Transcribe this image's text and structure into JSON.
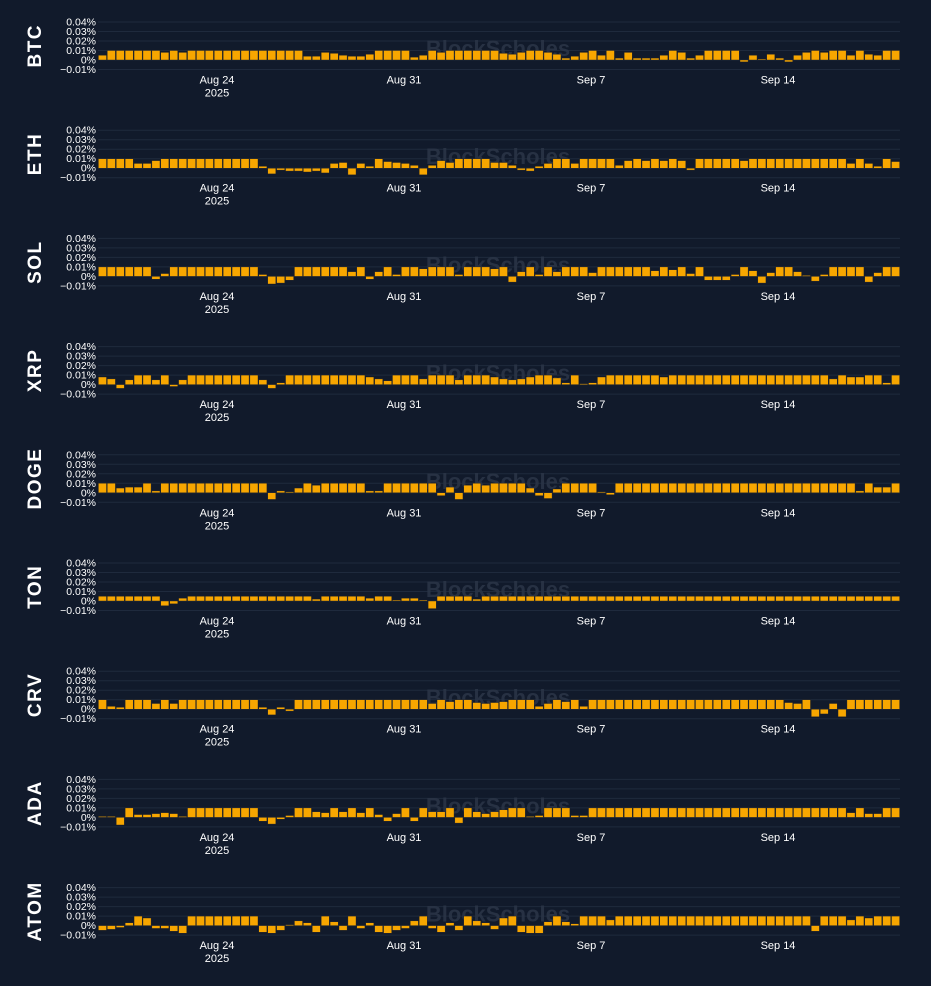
{
  "watermark": "BlockScholes",
  "colors": {
    "background": "#111a2b",
    "bar": "#f7a600",
    "bar_edge": "#1a1f2b",
    "grid": "#1f2a3d",
    "text": "#ffffff",
    "watermark": "#2a3446"
  },
  "chart_data": [
    {
      "type": "bar",
      "title": "BTC",
      "ylim": [
        -0.0001,
        0.0004
      ],
      "yticks": [
        -0.0001,
        0,
        0.0001,
        0.0002,
        0.0003,
        0.0004
      ],
      "ytick_labels": [
        "−0.01%",
        "0%",
        "0.01%",
        "0.02%",
        "0.03%",
        "0.04%"
      ],
      "xticks": [
        {
          "label": "Aug 24",
          "sublabel": "2025"
        },
        {
          "label": "Aug 31",
          "sublabel": ""
        },
        {
          "label": "Sep 7",
          "sublabel": ""
        },
        {
          "label": "Sep 14",
          "sublabel": ""
        }
      ],
      "values": [
        5e-05,
        0.0001,
        0.0001,
        0.0001,
        0.0001,
        0.0001,
        0.0001,
        8e-05,
        0.0001,
        8e-05,
        0.0001,
        0.0001,
        0.0001,
        0.0001,
        0.0001,
        0.0001,
        0.0001,
        0.0001,
        0.0001,
        0.0001,
        0.0001,
        0.0001,
        0.0001,
        4e-05,
        4e-05,
        8e-05,
        7e-05,
        5e-05,
        4e-05,
        4e-05,
        6e-05,
        0.0001,
        0.0001,
        0.0001,
        0.0001,
        3e-05,
        5e-05,
        0.0001,
        8e-05,
        0.0001,
        0.0001,
        0.0001,
        0.0001,
        0.0001,
        0.0001,
        7e-05,
        6e-05,
        8e-05,
        0.0001,
        0.0001,
        8e-05,
        6e-05,
        2e-05,
        4e-05,
        8e-05,
        0.0001,
        5e-05,
        0.0001,
        2e-05,
        8e-05,
        2e-05,
        2e-05,
        2e-05,
        5e-05,
        0.0001,
        8e-05,
        2e-05,
        5e-05,
        0.0001,
        0.0001,
        0.0001,
        0.0001,
        -2e-05,
        5e-05,
        1e-05,
        6e-05,
        2e-05,
        -2e-05,
        5e-05,
        8e-05,
        0.0001,
        8e-05,
        0.0001,
        0.0001,
        5e-05,
        0.0001,
        6e-05,
        5e-05,
        0.0001,
        0.0001
      ]
    },
    {
      "type": "bar",
      "title": "ETH",
      "ylim": [
        -0.0001,
        0.0004
      ],
      "yticks": [
        -0.0001,
        0,
        0.0001,
        0.0002,
        0.0003,
        0.0004
      ],
      "ytick_labels": [
        "−0.01%",
        "0%",
        "0.01%",
        "0.02%",
        "0.03%",
        "0.04%"
      ],
      "xticks": [
        {
          "label": "Aug 24",
          "sublabel": "2025"
        },
        {
          "label": "Aug 31",
          "sublabel": ""
        },
        {
          "label": "Sep 7",
          "sublabel": ""
        },
        {
          "label": "Sep 14",
          "sublabel": ""
        }
      ],
      "values": [
        0.0001,
        0.0001,
        0.0001,
        0.0001,
        5e-05,
        5e-05,
        8e-05,
        0.0001,
        0.0001,
        0.0001,
        0.0001,
        0.0001,
        0.0001,
        0.0001,
        0.0001,
        0.0001,
        0.0001,
        0.0001,
        2e-05,
        -6e-05,
        -2e-05,
        -3e-05,
        -3e-05,
        -4e-05,
        -3e-05,
        -5e-05,
        5e-05,
        6e-05,
        -7e-05,
        5e-05,
        2e-05,
        0.0001,
        7e-05,
        6e-05,
        5e-05,
        3e-05,
        -7e-05,
        3e-05,
        8e-05,
        6e-05,
        0.0001,
        0.0001,
        0.0001,
        0.0001,
        6e-05,
        6e-05,
        3e-05,
        -2e-05,
        -3e-05,
        2e-05,
        5e-05,
        0.0001,
        0.0001,
        5e-05,
        0.0001,
        0.0001,
        0.0001,
        0.0001,
        3e-05,
        8e-05,
        0.0001,
        8e-05,
        0.0001,
        8e-05,
        0.0001,
        8e-05,
        -2e-05,
        0.0001,
        0.0001,
        0.0001,
        0.0001,
        0.0001,
        8e-05,
        0.0001,
        0.0001,
        0.0001,
        0.0001,
        0.0001,
        0.0001,
        0.0001,
        0.0001,
        0.0001,
        0.0001,
        0.0001,
        5e-05,
        0.0001,
        5e-05,
        2e-05,
        0.0001,
        7e-05
      ]
    },
    {
      "type": "bar",
      "title": "SOL",
      "ylim": [
        -0.0001,
        0.0004
      ],
      "yticks": [
        -0.0001,
        0,
        0.0001,
        0.0002,
        0.0003,
        0.0004
      ],
      "ytick_labels": [
        "−0.01%",
        "0%",
        "0.01%",
        "0.02%",
        "0.03%",
        "0.04%"
      ],
      "xticks": [
        {
          "label": "Aug 24",
          "sublabel": "2025"
        },
        {
          "label": "Aug 31",
          "sublabel": ""
        },
        {
          "label": "Sep 7",
          "sublabel": ""
        },
        {
          "label": "Sep 14",
          "sublabel": ""
        }
      ],
      "values": [
        0.0001,
        0.0001,
        0.0001,
        0.0001,
        0.0001,
        0.0001,
        -3e-05,
        3e-05,
        0.0001,
        0.0001,
        0.0001,
        0.0001,
        0.0001,
        0.0001,
        0.0001,
        0.0001,
        0.0001,
        0.0001,
        2e-05,
        -8e-05,
        -7e-05,
        -4e-05,
        0.0001,
        0.0001,
        0.0001,
        0.0001,
        0.0001,
        0.0001,
        5e-05,
        0.0001,
        -3e-05,
        5e-05,
        0.0001,
        2e-05,
        0.0001,
        0.0001,
        8e-05,
        0.0001,
        0.0001,
        0.0001,
        2e-05,
        0.0001,
        0.0001,
        0.0001,
        8e-05,
        0.0001,
        -6e-05,
        5e-05,
        0.0001,
        2e-05,
        0.0001,
        5e-05,
        0.0001,
        0.0001,
        0.0001,
        4e-05,
        0.0001,
        0.0001,
        0.0001,
        0.0001,
        0.0001,
        0.0001,
        6e-05,
        0.0001,
        7e-05,
        0.0001,
        3e-05,
        0.0001,
        -4e-05,
        -4e-05,
        -4e-05,
        2e-05,
        0.0001,
        6e-05,
        -7e-05,
        4e-05,
        0.0001,
        0.0001,
        5e-05,
        1e-05,
        -5e-05,
        2e-05,
        0.0001,
        0.0001,
        0.0001,
        0.0001,
        -6e-05,
        4e-05,
        0.0001,
        0.0001
      ]
    },
    {
      "type": "bar",
      "title": "XRP",
      "ylim": [
        -0.0001,
        0.0004
      ],
      "yticks": [
        -0.0001,
        0,
        0.0001,
        0.0002,
        0.0003,
        0.0004
      ],
      "ytick_labels": [
        "−0.01%",
        "0%",
        "0.01%",
        "0.02%",
        "0.03%",
        "0.04%"
      ],
      "xticks": [
        {
          "label": "Aug 24",
          "sublabel": "2025"
        },
        {
          "label": "Aug 31",
          "sublabel": ""
        },
        {
          "label": "Sep 7",
          "sublabel": ""
        },
        {
          "label": "Sep 14",
          "sublabel": ""
        }
      ],
      "values": [
        8e-05,
        6e-05,
        -4e-05,
        5e-05,
        0.0001,
        0.0001,
        5e-05,
        0.0001,
        -2e-05,
        5e-05,
        0.0001,
        0.0001,
        0.0001,
        0.0001,
        0.0001,
        0.0001,
        0.0001,
        0.0001,
        5e-05,
        -4e-05,
        2e-05,
        0.0001,
        0.0001,
        0.0001,
        0.0001,
        0.0001,
        0.0001,
        0.0001,
        0.0001,
        0.0001,
        8e-05,
        6e-05,
        4e-05,
        0.0001,
        0.0001,
        0.0001,
        6e-05,
        0.0001,
        0.0001,
        0.0001,
        5e-05,
        0.0001,
        0.0001,
        0.0001,
        8e-05,
        6e-05,
        5e-05,
        6e-05,
        8e-05,
        0.0001,
        0.0001,
        7e-05,
        2e-05,
        0.0001,
        1e-05,
        2e-05,
        8e-05,
        0.0001,
        0.0001,
        0.0001,
        0.0001,
        0.0001,
        0.0001,
        8e-05,
        0.0001,
        0.0001,
        0.0001,
        0.0001,
        0.0001,
        0.0001,
        0.0001,
        0.0001,
        0.0001,
        0.0001,
        0.0001,
        0.0001,
        0.0001,
        0.0001,
        0.0001,
        0.0001,
        0.0001,
        0.0001,
        6e-05,
        0.0001,
        8e-05,
        8e-05,
        0.0001,
        0.0001,
        2e-05,
        0.0001
      ]
    },
    {
      "type": "bar",
      "title": "DOGE",
      "ylim": [
        -0.0001,
        0.0004
      ],
      "yticks": [
        -0.0001,
        0,
        0.0001,
        0.0002,
        0.0003,
        0.0004
      ],
      "ytick_labels": [
        "−0.01%",
        "0%",
        "0.01%",
        "0.02%",
        "0.03%",
        "0.04%"
      ],
      "xticks": [
        {
          "label": "Aug 24",
          "sublabel": "2025"
        },
        {
          "label": "Aug 31",
          "sublabel": ""
        },
        {
          "label": "Sep 7",
          "sublabel": ""
        },
        {
          "label": "Sep 14",
          "sublabel": ""
        }
      ],
      "values": [
        0.0001,
        0.0001,
        5e-05,
        6e-05,
        6e-05,
        0.0001,
        2e-05,
        0.0001,
        0.0001,
        0.0001,
        0.0001,
        0.0001,
        0.0001,
        0.0001,
        0.0001,
        0.0001,
        0.0001,
        0.0001,
        0.0001,
        -7e-05,
        2e-05,
        1e-05,
        5e-05,
        0.0001,
        8e-05,
        0.0001,
        0.0001,
        0.0001,
        0.0001,
        0.0001,
        2e-05,
        2e-05,
        0.0001,
        0.0001,
        0.0001,
        0.0001,
        0.0001,
        0.0001,
        -3e-05,
        6e-05,
        -7e-05,
        8e-05,
        0.0001,
        8e-05,
        0.0001,
        0.0001,
        0.0001,
        0.0001,
        5e-05,
        -3e-05,
        -6e-05,
        4e-05,
        0.0001,
        0.0001,
        0.0001,
        0.0001,
        1e-05,
        -2e-05,
        0.0001,
        0.0001,
        0.0001,
        0.0001,
        0.0001,
        0.0001,
        0.0001,
        0.0001,
        0.0001,
        0.0001,
        0.0001,
        0.0001,
        0.0001,
        0.0001,
        0.0001,
        0.0001,
        0.0001,
        0.0001,
        0.0001,
        0.0001,
        0.0001,
        0.0001,
        0.0001,
        0.0001,
        0.0001,
        0.0001,
        0.0001,
        2e-05,
        0.0001,
        6e-05,
        6e-05,
        0.0001
      ]
    },
    {
      "type": "bar",
      "title": "TON",
      "ylim": [
        -0.0001,
        0.0004
      ],
      "yticks": [
        -0.0001,
        0,
        0.0001,
        0.0002,
        0.0003,
        0.0004
      ],
      "ytick_labels": [
        "−0.01%",
        "0%",
        "0.01%",
        "0.02%",
        "0.03%",
        "0.04%"
      ],
      "xticks": [
        {
          "label": "Aug 24",
          "sublabel": "2025"
        },
        {
          "label": "Aug 31",
          "sublabel": ""
        },
        {
          "label": "Sep 7",
          "sublabel": ""
        },
        {
          "label": "Sep 14",
          "sublabel": ""
        }
      ],
      "values": [
        5e-05,
        5e-05,
        5e-05,
        5e-05,
        5e-05,
        5e-05,
        5e-05,
        -5e-05,
        -3e-05,
        3e-05,
        5e-05,
        5e-05,
        5e-05,
        5e-05,
        5e-05,
        5e-05,
        5e-05,
        5e-05,
        5e-05,
        5e-05,
        5e-05,
        5e-05,
        5e-05,
        5e-05,
        2e-05,
        5e-05,
        5e-05,
        5e-05,
        5e-05,
        5e-05,
        3e-05,
        5e-05,
        5e-05,
        1e-05,
        3e-05,
        3e-05,
        1e-05,
        -8e-05,
        5e-05,
        5e-05,
        5e-05,
        5e-05,
        2e-05,
        5e-05,
        5e-05,
        5e-05,
        5e-05,
        5e-05,
        5e-05,
        5e-05,
        5e-05,
        5e-05,
        5e-05,
        5e-05,
        5e-05,
        5e-05,
        5e-05,
        5e-05,
        5e-05,
        5e-05,
        5e-05,
        5e-05,
        5e-05,
        5e-05,
        5e-05,
        5e-05,
        5e-05,
        5e-05,
        5e-05,
        5e-05,
        5e-05,
        5e-05,
        5e-05,
        5e-05,
        5e-05,
        5e-05,
        5e-05,
        5e-05,
        5e-05,
        5e-05,
        5e-05,
        5e-05,
        5e-05,
        5e-05,
        5e-05,
        5e-05,
        5e-05,
        5e-05,
        5e-05,
        5e-05
      ]
    },
    {
      "type": "bar",
      "title": "CRV",
      "ylim": [
        -0.0001,
        0.0004
      ],
      "yticks": [
        -0.0001,
        0,
        0.0001,
        0.0002,
        0.0003,
        0.0004
      ],
      "ytick_labels": [
        "−0.01%",
        "0%",
        "0.01%",
        "0.02%",
        "0.03%",
        "0.04%"
      ],
      "xticks": [
        {
          "label": "Aug 24",
          "sublabel": "2025"
        },
        {
          "label": "Aug 31",
          "sublabel": ""
        },
        {
          "label": "Sep 7",
          "sublabel": ""
        },
        {
          "label": "Sep 14",
          "sublabel": ""
        }
      ],
      "values": [
        0.0001,
        3e-05,
        2e-05,
        0.0001,
        0.0001,
        0.0001,
        6e-05,
        0.0001,
        6e-05,
        0.0001,
        0.0001,
        0.0001,
        0.0001,
        0.0001,
        0.0001,
        0.0001,
        0.0001,
        0.0001,
        2e-05,
        -6e-05,
        2e-05,
        -2e-05,
        0.0001,
        0.0001,
        0.0001,
        0.0001,
        0.0001,
        0.0001,
        0.0001,
        0.0001,
        0.0001,
        0.0001,
        0.0001,
        0.0001,
        0.0001,
        0.0001,
        0.0001,
        6e-05,
        0.0001,
        8e-05,
        0.0001,
        0.0001,
        7e-05,
        6e-05,
        7e-05,
        8e-05,
        0.0001,
        0.0001,
        0.0001,
        3e-05,
        6e-05,
        0.0001,
        8e-05,
        0.0001,
        3e-05,
        0.0001,
        0.0001,
        0.0001,
        0.0001,
        0.0001,
        0.0001,
        0.0001,
        0.0001,
        0.0001,
        0.0001,
        0.0001,
        0.0001,
        0.0001,
        0.0001,
        0.0001,
        0.0001,
        0.0001,
        0.0001,
        0.0001,
        0.0001,
        0.0001,
        0.0001,
        7e-05,
        6e-05,
        0.0001,
        -8e-05,
        -5e-05,
        6e-05,
        -8e-05,
        0.0001,
        0.0001,
        0.0001,
        0.0001,
        0.0001,
        0.0001
      ]
    },
    {
      "type": "bar",
      "title": "ADA",
      "ylim": [
        -0.0001,
        0.0004
      ],
      "yticks": [
        -0.0001,
        0,
        0.0001,
        0.0002,
        0.0003,
        0.0004
      ],
      "ytick_labels": [
        "−0.01%",
        "0%",
        "0.01%",
        "0.02%",
        "0.03%",
        "0.04%"
      ],
      "xticks": [
        {
          "label": "Aug 24",
          "sublabel": "2025"
        },
        {
          "label": "Aug 31",
          "sublabel": ""
        },
        {
          "label": "Sep 7",
          "sublabel": ""
        },
        {
          "label": "Sep 14",
          "sublabel": ""
        }
      ],
      "values": [
        1e-05,
        1e-05,
        -8e-05,
        0.0001,
        3e-05,
        3e-05,
        4e-05,
        5e-05,
        4e-05,
        1e-05,
        0.0001,
        0.0001,
        0.0001,
        0.0001,
        0.0001,
        0.0001,
        0.0001,
        0.0001,
        -4e-05,
        -7e-05,
        -2e-05,
        2e-05,
        0.0001,
        0.0001,
        6e-05,
        5e-05,
        0.0001,
        6e-05,
        0.0001,
        5e-05,
        0.0001,
        3e-05,
        -4e-05,
        4e-05,
        0.0001,
        -4e-05,
        0.0001,
        6e-05,
        6e-05,
        0.0001,
        -6e-05,
        0.0001,
        6e-05,
        4e-05,
        6e-05,
        8e-05,
        0.0001,
        0.0001,
        1e-05,
        2e-05,
        0.0001,
        0.0001,
        0.0001,
        2e-05,
        2e-05,
        0.0001,
        0.0001,
        0.0001,
        0.0001,
        0.0001,
        0.0001,
        0.0001,
        0.0001,
        0.0001,
        0.0001,
        0.0001,
        0.0001,
        0.0001,
        0.0001,
        0.0001,
        0.0001,
        0.0001,
        0.0001,
        0.0001,
        0.0001,
        0.0001,
        0.0001,
        0.0001,
        0.0001,
        0.0001,
        0.0001,
        0.0001,
        0.0001,
        0.0001,
        5e-05,
        0.0001,
        4e-05,
        4e-05,
        0.0001,
        0.0001
      ]
    },
    {
      "type": "bar",
      "title": "ATOM",
      "ylim": [
        -0.0001,
        0.0004
      ],
      "yticks": [
        -0.0001,
        0,
        0.0001,
        0.0002,
        0.0003,
        0.0004
      ],
      "ytick_labels": [
        "−0.01%",
        "0%",
        "0.01%",
        "0.02%",
        "0.03%",
        "0.04%"
      ],
      "xticks": [
        {
          "label": "Aug 24",
          "sublabel": "2025"
        },
        {
          "label": "Aug 31",
          "sublabel": ""
        },
        {
          "label": "Sep 7",
          "sublabel": ""
        },
        {
          "label": "Sep 14",
          "sublabel": ""
        }
      ],
      "values": [
        -5e-05,
        -4e-05,
        -2e-05,
        3e-05,
        0.0001,
        8e-05,
        -3e-05,
        -3e-05,
        -6e-05,
        -8e-05,
        0.0001,
        0.0001,
        0.0001,
        0.0001,
        0.0001,
        0.0001,
        0.0001,
        0.0001,
        -7e-05,
        -8e-05,
        -5e-05,
        1e-05,
        5e-05,
        3e-05,
        -7e-05,
        0.0001,
        4e-05,
        -5e-05,
        0.0001,
        -3e-05,
        3e-05,
        -7e-05,
        -8e-05,
        -5e-05,
        -3e-05,
        5e-05,
        0.0001,
        -3e-05,
        -7e-05,
        3e-05,
        -5e-05,
        0.0001,
        5e-05,
        3e-05,
        -4e-05,
        8e-05,
        0.0001,
        -7e-05,
        -8e-05,
        -8e-05,
        4e-05,
        0.0001,
        4e-05,
        2e-05,
        0.0001,
        0.0001,
        0.0001,
        6e-05,
        0.0001,
        0.0001,
        0.0001,
        0.0001,
        0.0001,
        0.0001,
        0.0001,
        0.0001,
        0.0001,
        0.0001,
        0.0001,
        0.0001,
        0.0001,
        0.0001,
        0.0001,
        0.0001,
        0.0001,
        0.0001,
        0.0001,
        0.0001,
        0.0001,
        0.0001,
        -6e-05,
        0.0001,
        0.0001,
        0.0001,
        6e-05,
        0.0001,
        8e-05,
        0.0001,
        0.0001,
        0.0001
      ]
    }
  ]
}
